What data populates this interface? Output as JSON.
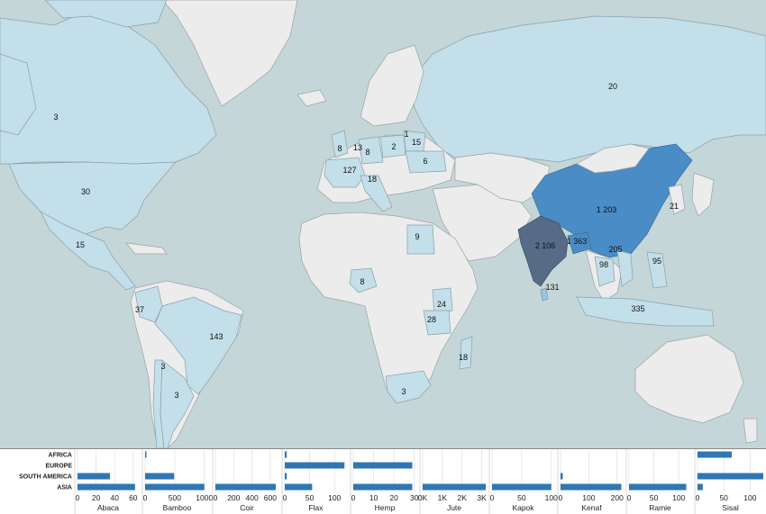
{
  "map": {
    "labels": [
      {
        "id": "canada",
        "text": "3"
      },
      {
        "id": "usa",
        "text": "30"
      },
      {
        "id": "mexico",
        "text": "15"
      },
      {
        "id": "colombia",
        "text": "37"
      },
      {
        "id": "brazil",
        "text": "143"
      },
      {
        "id": "chile",
        "text": "3"
      },
      {
        "id": "argentina",
        "text": "3"
      },
      {
        "id": "russia",
        "text": "20"
      },
      {
        "id": "uk",
        "text": "8"
      },
      {
        "id": "netherlands",
        "text": "13"
      },
      {
        "id": "germany",
        "text": "8"
      },
      {
        "id": "poland",
        "text": "2"
      },
      {
        "id": "lithuania",
        "text": "1"
      },
      {
        "id": "belarus",
        "text": "15"
      },
      {
        "id": "ukraine",
        "text": "6"
      },
      {
        "id": "france",
        "text": "127"
      },
      {
        "id": "italy",
        "text": "18"
      },
      {
        "id": "egypt",
        "text": "9"
      },
      {
        "id": "nigeria",
        "text": "8"
      },
      {
        "id": "kenya",
        "text": "24"
      },
      {
        "id": "tanzania",
        "text": "28"
      },
      {
        "id": "madagascar",
        "text": "18"
      },
      {
        "id": "south-africa",
        "text": "3"
      },
      {
        "id": "china",
        "text": "1 203"
      },
      {
        "id": "india",
        "text": "2 106"
      },
      {
        "id": "bangladesh",
        "text": "1 363"
      },
      {
        "id": "sri-lanka",
        "text": "131"
      },
      {
        "id": "vietnam",
        "text": "205"
      },
      {
        "id": "thailand",
        "text": "98"
      },
      {
        "id": "philippines",
        "text": "95"
      },
      {
        "id": "indonesia",
        "text": "335"
      },
      {
        "id": "korea",
        "text": "21"
      }
    ]
  },
  "chart_data": {
    "type": "bar",
    "orientation": "horizontal",
    "regions": [
      "AFRICA",
      "EUROPE",
      "SOUTH AMERICA",
      "ASIA"
    ],
    "panels": [
      {
        "fiber": "Abaca",
        "ticks": [
          "0",
          "20",
          "40",
          "60"
        ],
        "max": 66,
        "values": {
          "AFRICA": 0,
          "EUROPE": 0,
          "SOUTH AMERICA": 35,
          "ASIA": 62
        }
      },
      {
        "fiber": "Bamboo",
        "ticks": [
          "0",
          "500",
          "1000"
        ],
        "max": 1080,
        "values": {
          "AFRICA": 15,
          "EUROPE": 0,
          "SOUTH AMERICA": 490,
          "ASIA": 1000
        }
      },
      {
        "fiber": "Coir",
        "ticks": [
          "0",
          "200",
          "400",
          "600"
        ],
        "max": 690,
        "values": {
          "AFRICA": 0,
          "EUROPE": 0,
          "SOUTH AMERICA": 0,
          "ASIA": 660
        }
      },
      {
        "fiber": "Flax",
        "ticks": [
          "0",
          "50",
          "100"
        ],
        "max": 125,
        "values": {
          "AFRICA": 4,
          "EUROPE": 120,
          "SOUTH AMERICA": 4,
          "ASIA": 55
        }
      },
      {
        "fiber": "Hemp",
        "ticks": [
          "0",
          "10",
          "20",
          "30"
        ],
        "max": 31,
        "values": {
          "AFRICA": 0,
          "EUROPE": 29,
          "SOUTH AMERICA": 0,
          "ASIA": 29
        }
      },
      {
        "fiber": "Jute",
        "ticks": [
          "0K",
          "1K",
          "2K",
          "3K"
        ],
        "max": 3200,
        "values": {
          "AFRICA": 0,
          "EUROPE": 0,
          "SOUTH AMERICA": 0,
          "ASIA": 3200
        }
      },
      {
        "fiber": "Kapok",
        "ticks": [
          "0",
          "50",
          "100"
        ],
        "max": 105,
        "values": {
          "AFRICA": 0,
          "EUROPE": 0,
          "SOUTH AMERICA": 0,
          "ASIA": 100
        }
      },
      {
        "fiber": "Kenaf",
        "ticks": [
          "0",
          "100",
          "200"
        ],
        "max": 220,
        "values": {
          "AFRICA": 0,
          "EUROPE": 0,
          "SOUTH AMERICA": 8,
          "ASIA": 215
        }
      },
      {
        "fiber": "Ramie",
        "ticks": [
          "0",
          "50",
          "100"
        ],
        "max": 125,
        "values": {
          "AFRICA": 0,
          "EUROPE": 0,
          "SOUTH AMERICA": 0,
          "ASIA": 115
        }
      },
      {
        "fiber": "Sisal",
        "ticks": [
          "0",
          "50",
          "100"
        ],
        "max": 125,
        "values": {
          "AFRICA": 65,
          "EUROPE": 0,
          "SOUTH AMERICA": 125,
          "ASIA": 10
        }
      }
    ],
    "xlabel": "",
    "ylabel": "",
    "grid": true
  }
}
